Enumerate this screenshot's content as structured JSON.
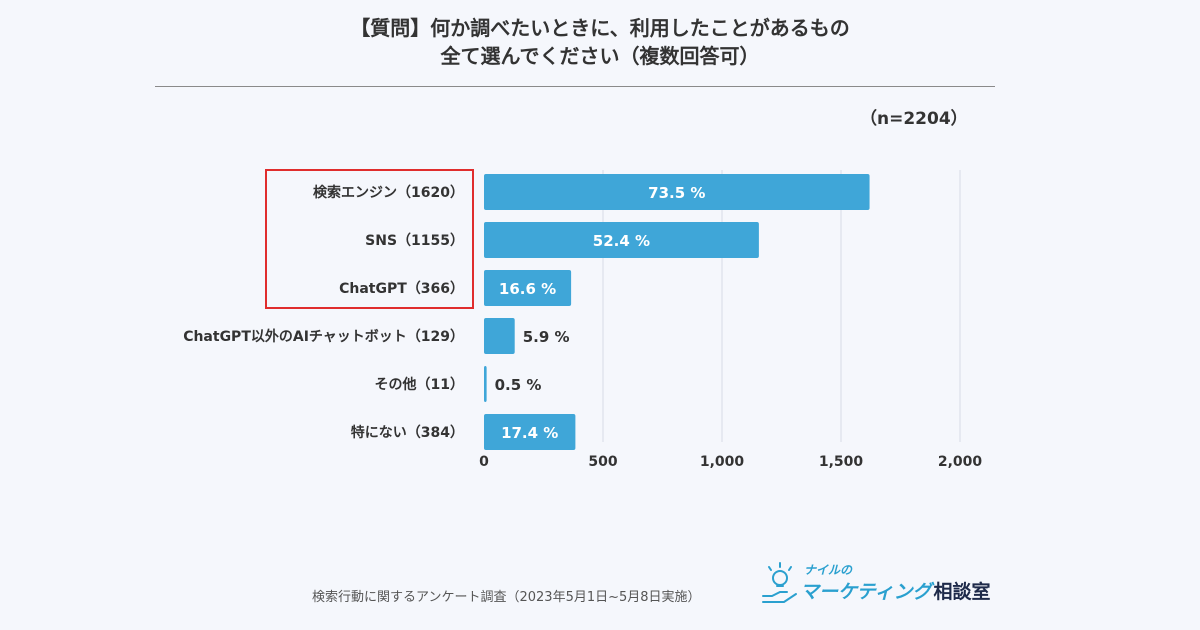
{
  "title_line1": "【質問】何か調べたいときに、利用したことがあるもの",
  "title_line2": "全て選んでください（複数回答可）",
  "sample_size": "（n=2204）",
  "source": "検索行動に関するアンケート調査（2023年5月1日~5月8日実施）",
  "logo": {
    "small": "ナイルの",
    "main": "マーケティング",
    "suffix": "相談室"
  },
  "colors": {
    "bar": "#3fa6d8",
    "highlight_box": "#e02d2d",
    "grid": "#d6dbe6"
  },
  "chart_data": {
    "type": "bar",
    "orientation": "horizontal",
    "categories": [
      "検索エンジン（1620）",
      "SNS（1155）",
      "ChatGPT（366）",
      "ChatGPT以外のAIチャットボット（129）",
      "その他（11）",
      "特にない（384）"
    ],
    "values": [
      1620,
      1155,
      366,
      129,
      11,
      384
    ],
    "data_labels": [
      "73.5 %",
      "52.4 %",
      "16.6 %",
      "5.9 %",
      "0.5 %",
      "17.4 %"
    ],
    "xlim": [
      0,
      2000
    ],
    "xticks": [
      0,
      500,
      1000,
      1500,
      2000
    ],
    "xtick_labels": [
      "0",
      "500",
      "1,000",
      "1,500",
      "2,000"
    ],
    "grid": true,
    "highlighted_categories": [
      0,
      1,
      2
    ]
  }
}
